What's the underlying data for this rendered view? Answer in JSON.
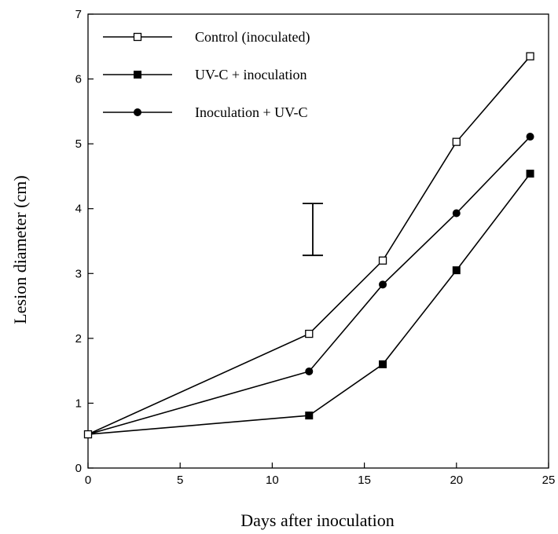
{
  "chart_data": {
    "type": "line",
    "xlabel": "Days after inoculation",
    "ylabel": "Lesion diameter (cm)",
    "xlim": [
      0,
      25
    ],
    "ylim": [
      0,
      7
    ],
    "xticks": [
      "0",
      "5",
      "10",
      "15",
      "20",
      "25"
    ],
    "yticks": [
      "0",
      "1",
      "2",
      "3",
      "4",
      "5",
      "6",
      "7"
    ],
    "grid": false,
    "legend_position": "top-left",
    "x": [
      0,
      12,
      16,
      20,
      24
    ],
    "series": [
      {
        "name": "Control (inoculated)",
        "marker": "open-square",
        "values": [
          0.52,
          2.07,
          3.2,
          5.03,
          6.35
        ]
      },
      {
        "name": "UV-C + inoculation",
        "marker": "filled-square",
        "values": [
          0.52,
          0.81,
          1.6,
          3.05,
          4.54
        ]
      },
      {
        "name": "Inoculation + UV-C",
        "marker": "filled-circle",
        "values": [
          0.52,
          1.49,
          2.83,
          3.93,
          5.11
        ]
      }
    ],
    "error_bar": {
      "x": 12.2,
      "low": 3.28,
      "high": 4.08
    }
  }
}
